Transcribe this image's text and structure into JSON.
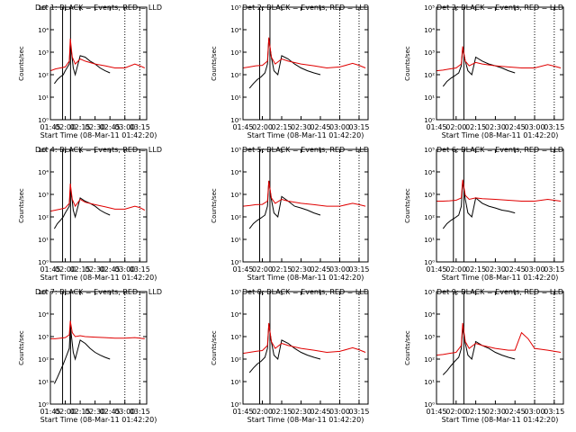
{
  "figure": {
    "xlabel": "Start Time (08-Mar-11 01:42:20)",
    "ylabel": "Counts/sec",
    "x_ticks": [
      "01:45",
      "02:00",
      "02:15",
      "02:30",
      "02:45",
      "03:00",
      "03:15"
    ],
    "y_ticks": [
      "10⁰",
      "10¹",
      "10²",
      "10³",
      "10⁴",
      "10⁵"
    ],
    "colors": {
      "events": "#000000",
      "lld": "#e00000",
      "axes": "#000000",
      "background": "#ffffff"
    }
  },
  "chart_data": [
    {
      "type": "line",
      "title": "Det 1: BLACK = Events, RED = LLD",
      "xlabel": "Start Time (08-Mar-11 01:42:20)",
      "ylabel": "Counts/sec",
      "xlim": [
        "01:45",
        "03:22"
      ],
      "ylim": [
        1,
        100000
      ],
      "yscale": "log",
      "series": [
        {
          "name": "Events",
          "color": "#000000",
          "x": [
            "01:49",
            "01:52",
            "01:55",
            "01:58",
            "02:00",
            "02:04",
            "02:05",
            "02:07",
            "02:08",
            "02:10",
            "02:15",
            "02:20",
            "02:25",
            "02:30",
            "02:35",
            "02:40",
            "02:45"
          ],
          "y": [
            40,
            60,
            80,
            100,
            150,
            300,
            2500,
            500,
            200,
            100,
            700,
            600,
            400,
            300,
            200,
            150,
            120
          ]
        },
        {
          "name": "LLD",
          "color": "#e00000",
          "x": [
            "01:45",
            "01:50",
            "01:55",
            "02:00",
            "02:04",
            "02:05",
            "02:07",
            "02:10",
            "02:15",
            "02:20",
            "02:30",
            "02:40",
            "02:50",
            "03:00",
            "03:10",
            "03:15",
            "03:20"
          ],
          "y": [
            150,
            180,
            200,
            220,
            400,
            4000,
            600,
            300,
            500,
            400,
            300,
            250,
            200,
            200,
            300,
            250,
            200
          ]
        }
      ]
    },
    {
      "type": "line",
      "title": "Det 2: BLACK = Events, RED = LLD",
      "xlabel": "Start Time (08-Mar-11 01:42:20)",
      "ylabel": "Counts/sec",
      "xlim": [
        "01:45",
        "03:22"
      ],
      "ylim": [
        1,
        100000
      ],
      "yscale": "log",
      "series": [
        {
          "name": "Events",
          "color": "#000000",
          "x": [
            "01:50",
            "01:53",
            "01:56",
            "01:59",
            "02:02",
            "02:04",
            "02:05",
            "02:07",
            "02:09",
            "02:12",
            "02:15",
            "02:20",
            "02:25",
            "02:30",
            "02:35",
            "02:40",
            "02:45"
          ],
          "y": [
            25,
            40,
            60,
            80,
            120,
            300,
            4000,
            600,
            150,
            100,
            700,
            500,
            300,
            200,
            150,
            120,
            100
          ]
        },
        {
          "name": "LLD",
          "color": "#e00000",
          "x": [
            "01:45",
            "01:50",
            "01:55",
            "02:00",
            "02:04",
            "02:05",
            "02:07",
            "02:10",
            "02:15",
            "02:20",
            "02:30",
            "02:40",
            "02:50",
            "03:00",
            "03:10",
            "03:15",
            "03:20"
          ],
          "y": [
            200,
            220,
            250,
            260,
            400,
            4500,
            600,
            300,
            500,
            400,
            300,
            250,
            200,
            220,
            320,
            260,
            200
          ]
        }
      ]
    },
    {
      "type": "line",
      "title": "Det 3: BLACK = Events, RED = LLD",
      "xlabel": "Start Time (08-Mar-11 01:42:20)",
      "ylabel": "Counts/sec",
      "xlim": [
        "01:45",
        "03:22"
      ],
      "ylim": [
        1,
        100000
      ],
      "yscale": "log",
      "series": [
        {
          "name": "Events",
          "color": "#000000",
          "x": [
            "01:50",
            "01:53",
            "01:56",
            "01:59",
            "02:02",
            "02:04",
            "02:05",
            "02:07",
            "02:09",
            "02:12",
            "02:15",
            "02:20",
            "02:25",
            "02:30",
            "02:35",
            "02:40",
            "02:45"
          ],
          "y": [
            30,
            50,
            70,
            90,
            120,
            250,
            1500,
            400,
            150,
            100,
            600,
            400,
            300,
            250,
            200,
            150,
            120
          ]
        },
        {
          "name": "LLD",
          "color": "#e00000",
          "x": [
            "01:45",
            "01:50",
            "01:55",
            "02:00",
            "02:04",
            "02:05",
            "02:07",
            "02:10",
            "02:15",
            "02:20",
            "02:30",
            "02:40",
            "02:50",
            "03:00",
            "03:10",
            "03:15",
            "03:20"
          ],
          "y": [
            150,
            160,
            180,
            200,
            300,
            1800,
            400,
            250,
            350,
            300,
            250,
            220,
            200,
            200,
            280,
            240,
            200
          ]
        }
      ]
    },
    {
      "type": "line",
      "title": "Det 4: BLACK = Events, RED = LLD",
      "xlabel": "Start Time (08-Mar-11 01:42:20)",
      "ylabel": "Counts/sec",
      "xlim": [
        "01:45",
        "03:22"
      ],
      "ylim": [
        1,
        100000
      ],
      "yscale": "log",
      "series": [
        {
          "name": "Events",
          "color": "#000000",
          "x": [
            "01:49",
            "01:52",
            "01:55",
            "01:58",
            "02:00",
            "02:04",
            "02:05",
            "02:07",
            "02:08",
            "02:10",
            "02:15",
            "02:20",
            "02:25",
            "02:30",
            "02:35",
            "02:40",
            "02:45"
          ],
          "y": [
            30,
            50,
            70,
            100,
            150,
            300,
            2000,
            500,
            200,
            100,
            700,
            500,
            400,
            300,
            200,
            150,
            120
          ]
        },
        {
          "name": "LLD",
          "color": "#e00000",
          "x": [
            "01:45",
            "01:50",
            "01:55",
            "02:00",
            "02:04",
            "02:05",
            "02:07",
            "02:10",
            "02:15",
            "02:20",
            "02:30",
            "02:40",
            "02:50",
            "03:00",
            "03:10",
            "03:15",
            "03:20"
          ],
          "y": [
            180,
            200,
            220,
            250,
            400,
            3000,
            600,
            300,
            600,
            450,
            350,
            280,
            220,
            220,
            300,
            260,
            200
          ]
        }
      ]
    },
    {
      "type": "line",
      "title": "Det 5: BLACK = Events, RED = LLD",
      "xlabel": "Start Time (08-Mar-11 01:42:20)",
      "ylabel": "Counts/sec",
      "xlim": [
        "01:45",
        "03:22"
      ],
      "ylim": [
        1,
        100000
      ],
      "yscale": "log",
      "series": [
        {
          "name": "Events",
          "color": "#000000",
          "x": [
            "01:50",
            "01:53",
            "01:56",
            "01:59",
            "02:02",
            "02:04",
            "02:05",
            "02:07",
            "02:09",
            "02:12",
            "02:15",
            "02:20",
            "02:25",
            "02:30",
            "02:35",
            "02:40",
            "02:45"
          ],
          "y": [
            30,
            50,
            70,
            90,
            120,
            300,
            4000,
            600,
            150,
            100,
            800,
            500,
            300,
            250,
            200,
            150,
            120
          ]
        },
        {
          "name": "LLD",
          "color": "#e00000",
          "x": [
            "01:45",
            "01:50",
            "01:55",
            "02:00",
            "02:04",
            "02:05",
            "02:07",
            "02:10",
            "02:15",
            "02:20",
            "02:30",
            "02:40",
            "02:50",
            "03:00",
            "03:10",
            "03:15",
            "03:20"
          ],
          "y": [
            300,
            320,
            350,
            360,
            500,
            4000,
            700,
            400,
            600,
            500,
            400,
            350,
            300,
            300,
            400,
            350,
            300
          ]
        }
      ]
    },
    {
      "type": "line",
      "title": "Det 6: BLACK = Events, RED = LLD",
      "xlabel": "Start Time (08-Mar-11 01:42:20)",
      "ylabel": "Counts/sec",
      "xlim": [
        "01:45",
        "03:22"
      ],
      "ylim": [
        1,
        100000
      ],
      "yscale": "log",
      "series": [
        {
          "name": "Events",
          "color": "#000000",
          "x": [
            "01:50",
            "01:53",
            "01:56",
            "01:59",
            "02:02",
            "02:04",
            "02:05",
            "02:07",
            "02:09",
            "02:12",
            "02:15",
            "02:20",
            "02:25",
            "02:30",
            "02:35",
            "02:40",
            "02:45"
          ],
          "y": [
            30,
            50,
            70,
            90,
            120,
            300,
            4000,
            600,
            150,
            100,
            700,
            400,
            300,
            250,
            200,
            180,
            150
          ]
        },
        {
          "name": "LLD",
          "color": "#e00000",
          "x": [
            "01:45",
            "01:50",
            "01:55",
            "02:00",
            "02:04",
            "02:05",
            "02:07",
            "02:10",
            "02:15",
            "02:20",
            "02:30",
            "02:40",
            "02:50",
            "03:00",
            "03:10",
            "03:15",
            "03:20"
          ],
          "y": [
            500,
            500,
            520,
            550,
            700,
            4500,
            900,
            600,
            700,
            650,
            600,
            550,
            500,
            500,
            600,
            550,
            500
          ]
        }
      ]
    },
    {
      "type": "line",
      "title": "Det 7: BLACK = Events, RED = LLD",
      "xlabel": "Start Time (08-Mar-11 01:42:20)",
      "ylabel": "Counts/sec",
      "xlim": [
        "01:45",
        "03:22"
      ],
      "ylim": [
        1,
        100000
      ],
      "yscale": "log",
      "series": [
        {
          "name": "Events",
          "color": "#000000",
          "x": [
            "01:49",
            "01:52",
            "01:55",
            "01:58",
            "02:00",
            "02:04",
            "02:05",
            "02:07",
            "02:08",
            "02:10",
            "02:15",
            "02:20",
            "02:25",
            "02:30",
            "02:35",
            "02:40",
            "02:45"
          ],
          "y": [
            8,
            15,
            30,
            60,
            100,
            300,
            3000,
            500,
            200,
            100,
            700,
            500,
            300,
            200,
            150,
            120,
            100
          ]
        },
        {
          "name": "LLD",
          "color": "#e00000",
          "x": [
            "01:45",
            "01:50",
            "01:55",
            "02:00",
            "02:04",
            "02:05",
            "02:07",
            "02:10",
            "02:15",
            "02:20",
            "02:30",
            "02:40",
            "02:50",
            "03:00",
            "03:10",
            "03:15",
            "03:20"
          ],
          "y": [
            800,
            800,
            850,
            900,
            1200,
            5000,
            1500,
            1000,
            1100,
            1000,
            950,
            900,
            850,
            850,
            900,
            850,
            800
          ]
        }
      ]
    },
    {
      "type": "line",
      "title": "Det 8: BLACK = Events, RED = LLD",
      "xlabel": "Start Time (08-Mar-11 01:42:20)",
      "ylabel": "Counts/sec",
      "xlim": [
        "01:45",
        "03:22"
      ],
      "ylim": [
        1,
        100000
      ],
      "yscale": "log",
      "series": [
        {
          "name": "Events",
          "color": "#000000",
          "x": [
            "01:50",
            "01:53",
            "01:56",
            "01:59",
            "02:02",
            "02:04",
            "02:05",
            "02:07",
            "02:09",
            "02:12",
            "02:15",
            "02:20",
            "02:25",
            "02:30",
            "02:35",
            "02:40",
            "02:45"
          ],
          "y": [
            25,
            40,
            60,
            80,
            120,
            300,
            3500,
            600,
            150,
            100,
            700,
            500,
            300,
            200,
            150,
            120,
            100
          ]
        },
        {
          "name": "LLD",
          "color": "#e00000",
          "x": [
            "01:45",
            "01:50",
            "01:55",
            "02:00",
            "02:04",
            "02:05",
            "02:07",
            "02:10",
            "02:15",
            "02:20",
            "02:30",
            "02:40",
            "02:50",
            "03:00",
            "03:10",
            "03:15",
            "03:20"
          ],
          "y": [
            180,
            200,
            220,
            240,
            400,
            4000,
            600,
            300,
            500,
            400,
            300,
            250,
            200,
            220,
            320,
            260,
            200
          ]
        }
      ]
    },
    {
      "type": "line",
      "title": "Det 9: BLACK = Events, RED = LLD",
      "xlabel": "Start Time (08-Mar-11 01:42:20)",
      "ylabel": "Counts/sec",
      "xlim": [
        "01:45",
        "03:22"
      ],
      "ylim": [
        1,
        100000
      ],
      "yscale": "log",
      "series": [
        {
          "name": "Events",
          "color": "#000000",
          "x": [
            "01:50",
            "01:53",
            "01:56",
            "01:59",
            "02:02",
            "02:04",
            "02:05",
            "02:07",
            "02:09",
            "02:12",
            "02:15",
            "02:20",
            "02:25",
            "02:30",
            "02:35",
            "02:40",
            "02:45"
          ],
          "y": [
            20,
            30,
            50,
            80,
            120,
            300,
            2500,
            500,
            150,
            100,
            600,
            400,
            300,
            200,
            150,
            120,
            100
          ]
        },
        {
          "name": "LLD",
          "color": "#e00000",
          "x": [
            "01:45",
            "01:50",
            "01:55",
            "02:00",
            "02:04",
            "02:05",
            "02:07",
            "02:10",
            "02:15",
            "02:20",
            "02:30",
            "02:40",
            "02:45",
            "02:50",
            "02:55",
            "03:00",
            "03:10",
            "03:20"
          ],
          "y": [
            150,
            160,
            180,
            200,
            400,
            4000,
            600,
            300,
            500,
            400,
            300,
            250,
            250,
            1500,
            800,
            300,
            250,
            200
          ]
        }
      ]
    }
  ]
}
